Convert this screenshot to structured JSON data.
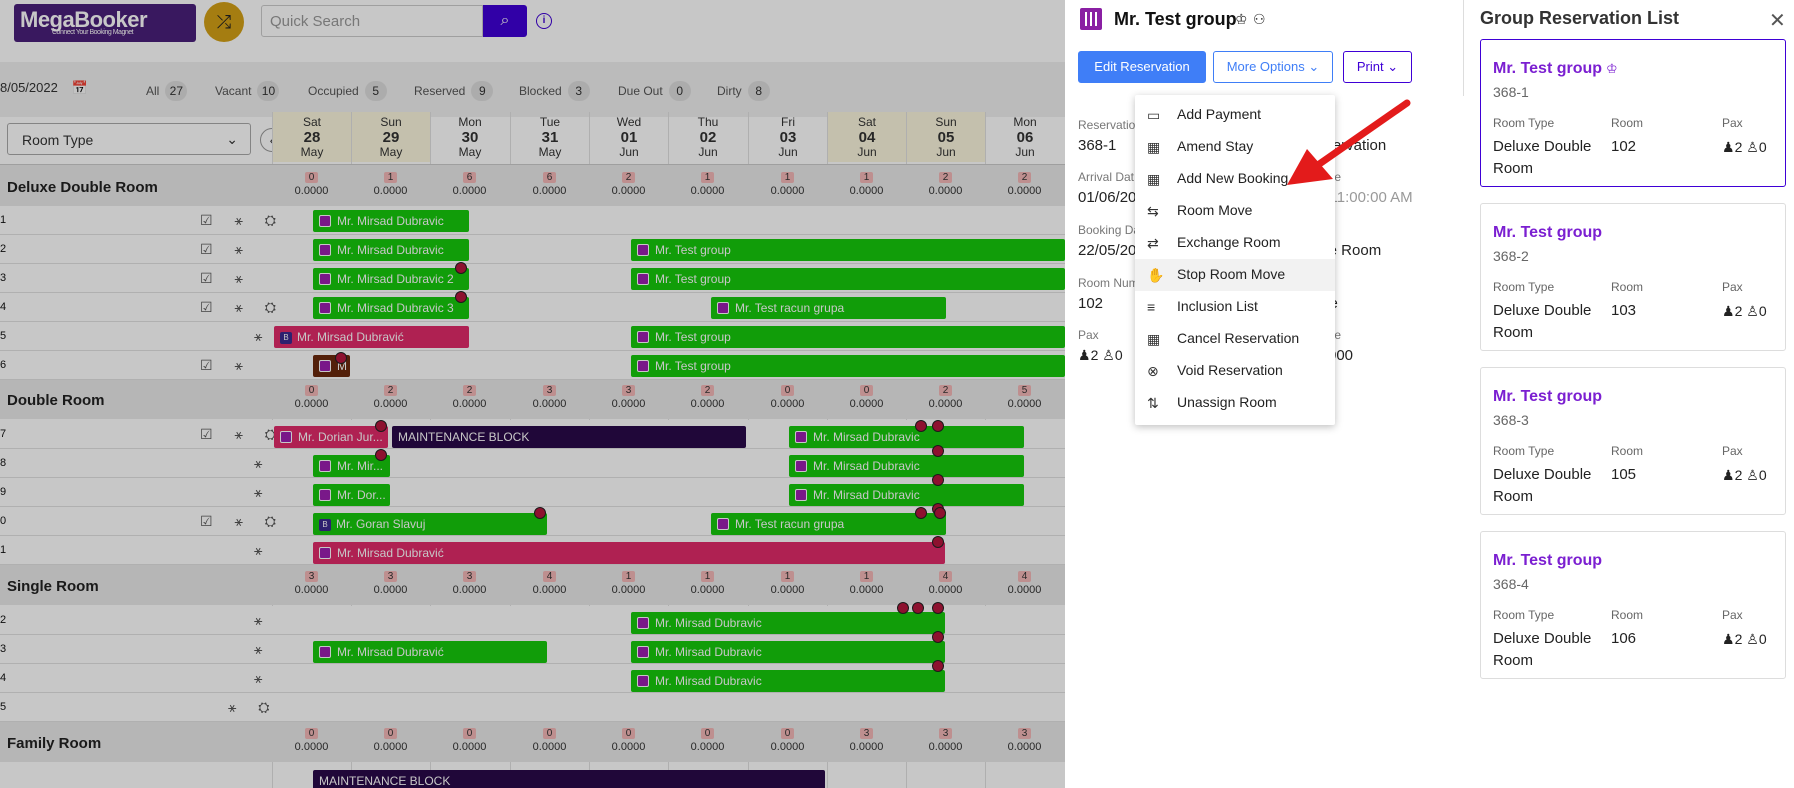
{
  "app": {
    "logo": "MegaBooker",
    "logo_tagline": "Connect Your Booking Magnet",
    "search_placeholder": "Quick Search"
  },
  "filters": {
    "date": "8/05/2022",
    "chips": [
      {
        "label": "All",
        "count": "27"
      },
      {
        "label": "Vacant",
        "count": "10"
      },
      {
        "label": "Occupied",
        "count": "5"
      },
      {
        "label": "Reserved",
        "count": "9"
      },
      {
        "label": "Blocked",
        "count": "3"
      },
      {
        "label": "Due Out",
        "count": "0"
      },
      {
        "label": "Dirty",
        "count": "8"
      }
    ],
    "room_type_select": "Room Type"
  },
  "days": [
    {
      "dow": "Sat",
      "day": "28",
      "mon": "May"
    },
    {
      "dow": "Sun",
      "day": "29",
      "mon": "May"
    },
    {
      "dow": "Mon",
      "day": "30",
      "mon": "May"
    },
    {
      "dow": "Tue",
      "day": "31",
      "mon": "May"
    },
    {
      "dow": "Wed",
      "day": "01",
      "mon": "Jun"
    },
    {
      "dow": "Thu",
      "day": "02",
      "mon": "Jun"
    },
    {
      "dow": "Fri",
      "day": "03",
      "mon": "Jun"
    },
    {
      "dow": "Sat",
      "day": "04",
      "mon": "Jun"
    },
    {
      "dow": "Sun",
      "day": "05",
      "mon": "Jun"
    },
    {
      "dow": "Mon",
      "day": "06",
      "mon": "Jun"
    }
  ],
  "sections": [
    {
      "name": "Deluxe Double Room",
      "counts": [
        "0",
        "1",
        "6",
        "6",
        "2",
        "1",
        "1",
        "1",
        "2",
        "2"
      ],
      "values": [
        "0.0000",
        "0.0000",
        "0.0000",
        "0.0000",
        "0.0000",
        "0.0000",
        "0.0000",
        "0.0000",
        "0.0000",
        "0.0000"
      ]
    },
    {
      "name": "Double Room",
      "counts": [
        "0",
        "2",
        "2",
        "3",
        "3",
        "2",
        "0",
        "0",
        "2",
        "5"
      ],
      "values": [
        "0.0000",
        "0.0000",
        "0.0000",
        "0.0000",
        "0.0000",
        "0.0000",
        "0.0000",
        "0.0000",
        "0.0000",
        "0.0000"
      ]
    },
    {
      "name": "Single Room",
      "counts": [
        "3",
        "3",
        "3",
        "4",
        "1",
        "1",
        "1",
        "1",
        "4",
        "4"
      ],
      "values": [
        "0.0000",
        "0.0000",
        "0.0000",
        "0.0000",
        "0.0000",
        "0.0000",
        "0.0000",
        "0.0000",
        "0.0000",
        "0.0000"
      ]
    },
    {
      "name": "Family Room",
      "counts": [
        "0",
        "0",
        "0",
        "0",
        "0",
        "0",
        "0",
        "3",
        "3",
        "3"
      ],
      "values": [
        "0.0000",
        "0.0000",
        "0.0000",
        "0.0000",
        "0.0000",
        "0.0000",
        "0.0000",
        "0.0000",
        "0.0000",
        "0.0000"
      ]
    }
  ],
  "rows": [
    "1",
    "2",
    "3",
    "4",
    "5",
    "6",
    "7",
    "8",
    "9",
    "0",
    "1",
    "2",
    "3",
    "4",
    "5"
  ],
  "bookings": {
    "b1": "Mr. Mirsad Dubravic",
    "b2": "Mr. Mirsad Dubravic",
    "b3": "Mr. Test group",
    "b4": "Mr. Mirsad Dubravic 2",
    "b5": "Mr. Test group",
    "b6": "Mr. Mirsad Dubravic 3",
    "b7": "Mr. Test racun grupa",
    "b8": "Mr. Mirsad Dubravić",
    "b9": "Mr. Test group",
    "b10": "M",
    "b11": "Mr. Test group",
    "b12": "Mr. Dorian Jur...",
    "b13": "MAINTENANCE BLOCK",
    "b14": "Mr. Mirsad Dubravic",
    "b15": "Mr. Mir...",
    "b16": "Mr. Mirsad Dubravic",
    "b17": "Mr. Dor...",
    "b18": "Mr. Mirsad Dubravic",
    "b19": "Mr. Goran Slavuj",
    "b20": "Mr. Test racun grupa",
    "b21": "Mr. Mirsad Dubravić",
    "b22": "Mr. Mirsad Dubravic",
    "b23": "Mr. Mirsad Dubravić",
    "b24": "Mr. Mirsad Dubravic",
    "b25": "Mr. Mirsad Dubravic",
    "b26": "MAINTENANCE BLOCK"
  },
  "detail": {
    "title": "Mr. Test group",
    "edit_button": "Edit Reservation",
    "more_button": "More Options",
    "print_button": "Print",
    "reservation_label": "Reservation",
    "reservation_value": "368-1",
    "reservation_type_value": "eservation",
    "arrival_label": "Arrival Dat",
    "arrival_value": "01/06/20",
    "date_label": "te",
    "date_value": "2 11:00:00 AM",
    "booking_label": "Booking Da",
    "booking_value": "22/05/20",
    "room_type_value": "ble Room",
    "roomnum_label": "Room Num",
    "roomnum_value": "102",
    "rate_label": "ate",
    "pax_label": "Pax",
    "pax_adults": "2",
    "pax_children": "0",
    "amount_label": "te",
    "amount_value": "000"
  },
  "menu": [
    {
      "label": "Add Payment",
      "icon": "payment-icon"
    },
    {
      "label": "Amend Stay",
      "icon": "calendar-edit-icon"
    },
    {
      "label": "Add New Booking",
      "icon": "calendar-add-icon"
    },
    {
      "label": "Room Move",
      "icon": "bed-move-icon"
    },
    {
      "label": "Exchange Room",
      "icon": "bed-exchange-icon"
    },
    {
      "label": "Stop Room Move",
      "icon": "hand-stop-icon"
    },
    {
      "label": "Inclusion List",
      "icon": "list-icon"
    },
    {
      "label": "Cancel Reservation",
      "icon": "calendar-cancel-icon"
    },
    {
      "label": "Void Reservation",
      "icon": "circle-x-icon"
    },
    {
      "label": "Unassign Room",
      "icon": "bed-unassign-icon"
    }
  ],
  "group": {
    "title": "Group Reservation List",
    "cards": [
      {
        "name": "Mr. Test group",
        "id": "368-1",
        "room_type_label": "Room Type",
        "room_type": "Deluxe Double Room",
        "room_label": "Room",
        "room": "102",
        "pax_label": "Pax",
        "adults": "2",
        "children": "0"
      },
      {
        "name": "Mr. Test group",
        "id": "368-2",
        "room_type_label": "Room Type",
        "room_type": "Deluxe Double Room",
        "room_label": "Room",
        "room": "103",
        "pax_label": "Pax",
        "adults": "2",
        "children": "0"
      },
      {
        "name": "Mr. Test group",
        "id": "368-3",
        "room_type_label": "Room Type",
        "room_type": "Deluxe Double Room",
        "room_label": "Room",
        "room": "105",
        "pax_label": "Pax",
        "adults": "2",
        "children": "0"
      },
      {
        "name": "Mr. Test group",
        "id": "368-4",
        "room_type_label": "Room Type",
        "room_type": "Deluxe Double Room",
        "room_label": "Room",
        "room": "106",
        "pax_label": "Pax",
        "adults": "2",
        "children": "0"
      }
    ]
  },
  "colors": {
    "accent": "#3f00d6",
    "primary_button": "#3f7ef7",
    "booking_green": "#16c90c",
    "booking_pink": "#e02b6a",
    "maintenance": "#2a0a4a",
    "group_name": "#7b1fd1"
  }
}
